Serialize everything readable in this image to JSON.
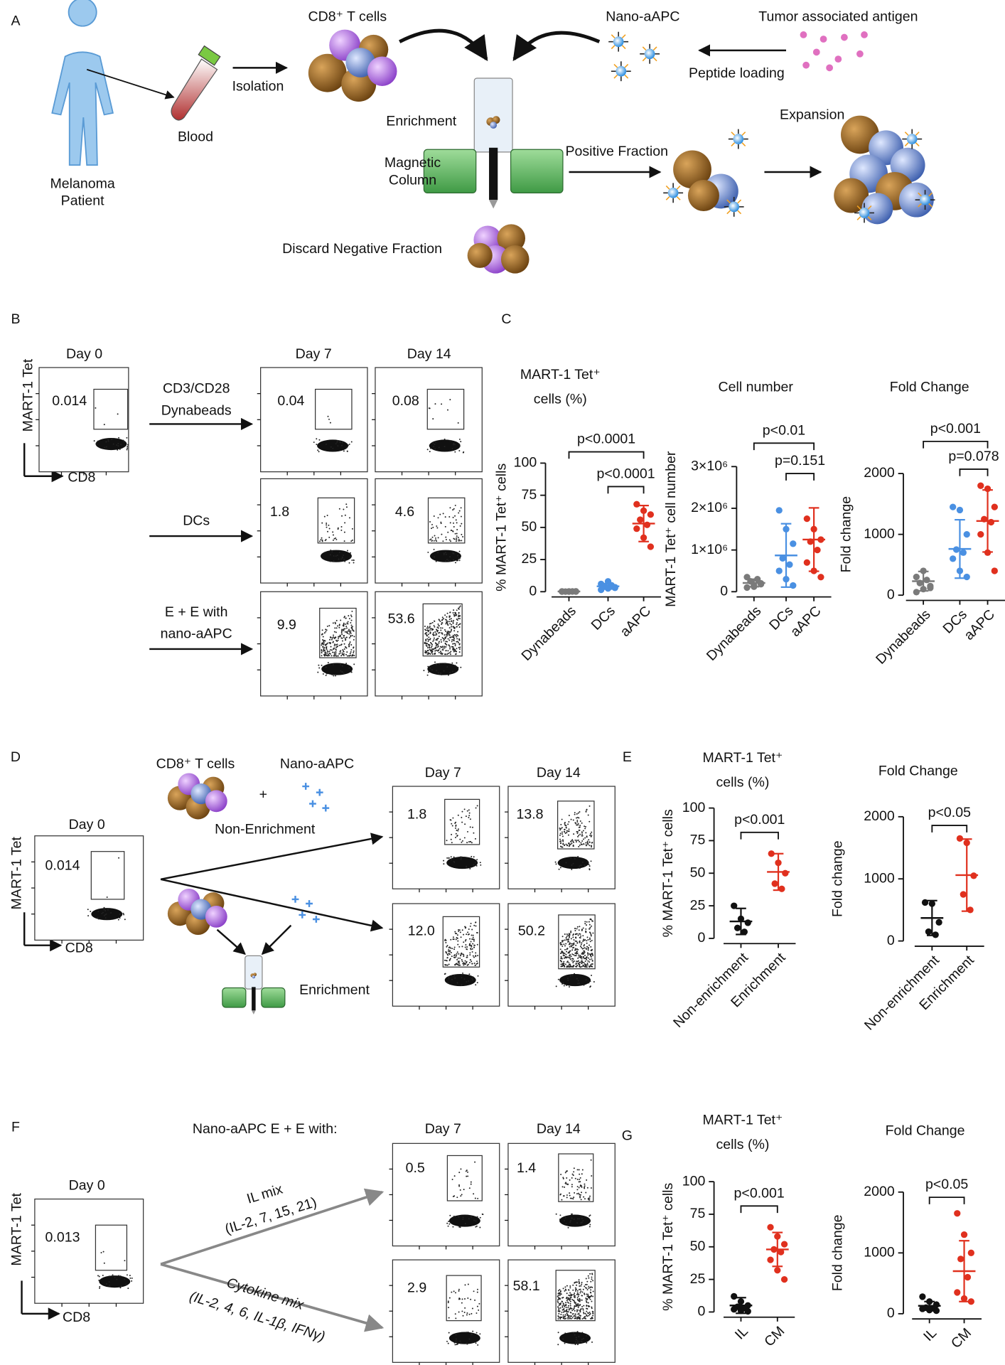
{
  "panel_letters": [
    "A",
    "B",
    "C",
    "D",
    "E",
    "F",
    "G"
  ],
  "schematic": {
    "patient": [
      "Melanoma",
      "Patient"
    ],
    "blood": "Blood",
    "isolation": "Isolation",
    "cd8": "CD8⁺ T cells",
    "nano_aapc": "Nano-aAPC",
    "antigen": "Tumor associated antigen",
    "peptide_loading": "Peptide loading",
    "enrichment": "Enrichment",
    "column": [
      "Magnetic",
      "Column"
    ],
    "positive": "Positive Fraction",
    "expansion": "Expansion",
    "discard": "Discard Negative Fraction"
  },
  "flow_B": {
    "y_axis": "MART-1 Tet",
    "x_axis": "CD8",
    "day0": "Day 0",
    "day0_gate": "0.014",
    "days": [
      "Day 7",
      "Day 14"
    ],
    "conditions": [
      {
        "label": [
          "CD3/CD28",
          "Dynabeads"
        ],
        "gates": [
          "0.04",
          "0.08"
        ]
      },
      {
        "label": [
          "DCs"
        ],
        "gates": [
          "1.8",
          "4.6"
        ]
      },
      {
        "label": [
          "E + E with",
          "nano-aAPC"
        ],
        "gates": [
          "9.9",
          "53.6"
        ]
      }
    ]
  },
  "flow_D": {
    "y_axis": "MART-1 Tet",
    "x_axis": "CD8",
    "day0": "Day 0",
    "day0_gate": "0.014",
    "days": [
      "Day 7",
      "Day 14"
    ],
    "cd8": "CD8⁺ T cells",
    "nano": "Nano-aAPC",
    "plus": "+",
    "conditions": [
      {
        "label": [
          "Non-Enrichment"
        ],
        "gates": [
          "1.8",
          "13.8"
        ]
      },
      {
        "label": [
          "Enrichment"
        ],
        "gates": [
          "12.0",
          "50.2"
        ]
      }
    ]
  },
  "flow_F": {
    "y_axis": "MART-1 Tet",
    "x_axis": "CD8",
    "day0": "Day 0",
    "day0_gate": "0.013",
    "days": [
      "Day 7",
      "Day 14"
    ],
    "heading": "Nano-aAPC E + E with:",
    "conditions": [
      {
        "label": [
          "IL mix",
          "(IL-2, 7, 15, 21)"
        ],
        "gates": [
          "0.5",
          "1.4"
        ]
      },
      {
        "label": [
          "Cytokine mix",
          "(IL-2, 4, 6, IL-1β, IFNγ)"
        ],
        "gates": [
          "2.9",
          "58.1"
        ]
      }
    ]
  },
  "chart_data": [
    {
      "type": "dotplot",
      "title": [
        "MART-1 Tet⁺",
        "cells (%)"
      ],
      "ylabel": "% MART-1 Tet⁺ cells",
      "categories": [
        "Dynabeads",
        "DCs",
        "aAPC"
      ],
      "groups": [
        {
          "color": "#7a7a7a",
          "points": [
            0.2,
            0.1,
            0.3,
            0.1,
            0.2,
            0.1,
            0.2,
            0.1
          ],
          "mean": 0.2,
          "sd": 0.1
        },
        {
          "color": "#4a90e2",
          "points": [
            1.5,
            2.5,
            3,
            4,
            5,
            6,
            8,
            3.5
          ],
          "mean": 4.2,
          "sd": 2.1
        },
        {
          "color": "#e0301e",
          "points": [
            68,
            63,
            60,
            56,
            52,
            49,
            42,
            35
          ],
          "mean": 53,
          "sd": 14
        }
      ],
      "ylim": [
        0,
        100
      ],
      "yticks": [
        0,
        25,
        50,
        75,
        100
      ],
      "annotations": [
        "p<0.0001",
        "p<0.0001"
      ]
    },
    {
      "type": "dotplot",
      "title": [
        "Cell number"
      ],
      "ylabel": "MART-1 Tet⁺ cell number",
      "categories": [
        "Dynabeads",
        "DCs",
        "aAPC"
      ],
      "groups": [
        {
          "color": "#7a7a7a",
          "points": [
            100000,
            150000,
            200000,
            250000,
            300000,
            350000,
            120000,
            180000
          ],
          "mean": 210000,
          "sd": 90000
        },
        {
          "color": "#4a90e2",
          "points": [
            1950000,
            1500000,
            1150000,
            800000,
            650000,
            500000,
            300000,
            150000
          ],
          "mean": 870000,
          "sd": 760000
        },
        {
          "color": "#e0301e",
          "points": [
            1750000,
            1500000,
            1250000,
            1200000,
            1000000,
            700000,
            500000,
            350000
          ],
          "mean": 1250000,
          "sd": 760000
        }
      ],
      "ylim": [
        0,
        3000000
      ],
      "yticks": [
        0,
        {
          "value": 1000000,
          "label": "1×10⁶"
        },
        {
          "value": 2000000,
          "label": "2×10⁶"
        },
        {
          "value": 3000000,
          "label": "3×10⁶"
        }
      ],
      "annotations": [
        "p<0.01",
        "p=0.151"
      ]
    },
    {
      "type": "dotplot",
      "title": [
        "Fold Change"
      ],
      "ylabel": "Fold change",
      "categories": [
        "Dynabeads",
        "DCs",
        "aAPC"
      ],
      "groups": [
        {
          "color": "#7a7a7a",
          "points": [
            50,
            100,
            150,
            200,
            250,
            300,
            400,
            120
          ],
          "mean": 230,
          "sd": 160
        },
        {
          "color": "#4a90e2",
          "points": [
            1450,
            1400,
            1000,
            750,
            700,
            600,
            400,
            300
          ],
          "mean": 760,
          "sd": 480
        },
        {
          "color": "#e0301e",
          "points": [
            1800,
            1750,
            1450,
            1250,
            1200,
            1000,
            700,
            400
          ],
          "mean": 1220,
          "sd": 510
        }
      ],
      "ylim": [
        0,
        2000
      ],
      "yticks": [
        0,
        1000,
        2000
      ],
      "annotations": [
        "p<0.001",
        "p=0.078"
      ]
    },
    {
      "type": "dotplot",
      "title": [
        "MART-1 Tet⁺",
        "cells (%)"
      ],
      "ylabel": "% MART-1 Tet⁺ cells",
      "categories": [
        "Non-enrichment",
        "Enrichment"
      ],
      "groups": [
        {
          "color": "#111111",
          "points": [
            25,
            15,
            12,
            8,
            5
          ],
          "mean": 13,
          "sd": 10
        },
        {
          "color": "#e0301e",
          "points": [
            65,
            58,
            50,
            42,
            38
          ],
          "mean": 51,
          "sd": 14
        }
      ],
      "ylim": [
        0,
        100
      ],
      "yticks": [
        0,
        25,
        50,
        75,
        100
      ],
      "annotations": [
        "p<0.001"
      ]
    },
    {
      "type": "dotplot",
      "title": [
        "Fold Change"
      ],
      "ylabel": "Fold change",
      "categories": [
        "Non-enrichment",
        "Enrichment"
      ],
      "groups": [
        {
          "color": "#111111",
          "points": [
            620,
            600,
            300,
            150,
            100
          ],
          "mean": 370,
          "sd": 280
        },
        {
          "color": "#e0301e",
          "points": [
            1650,
            1580,
            1050,
            750,
            500
          ],
          "mean": 1060,
          "sd": 580
        }
      ],
      "ylim": [
        0,
        2000
      ],
      "yticks": [
        0,
        1000,
        2000
      ],
      "annotations": [
        "p<0.05"
      ]
    },
    {
      "type": "dotplot",
      "title": [
        "MART-1 Tet⁺",
        "cells (%)"
      ],
      "ylabel": "% MART-1 Tet⁺ cells",
      "categories": [
        "IL",
        "CM"
      ],
      "groups": [
        {
          "color": "#111111",
          "points": [
            12,
            8,
            5,
            4,
            3,
            2,
            1,
            0.5
          ],
          "mean": 5,
          "sd": 6
        },
        {
          "color": "#e0301e",
          "points": [
            65,
            58,
            52,
            48,
            46,
            40,
            32,
            25
          ],
          "mean": 48,
          "sd": 13
        }
      ],
      "ylim": [
        0,
        100
      ],
      "yticks": [
        0,
        25,
        50,
        75,
        100
      ],
      "annotations": [
        "p<0.001"
      ]
    },
    {
      "type": "dotplot",
      "title": [
        "Fold Change"
      ],
      "ylabel": "Fold change",
      "categories": [
        "IL",
        "CM"
      ],
      "groups": [
        {
          "color": "#111111",
          "points": [
            280,
            200,
            150,
            100,
            90,
            80,
            60,
            50
          ],
          "mean": 130,
          "sd": 70
        },
        {
          "color": "#e0301e",
          "points": [
            1650,
            1300,
            1000,
            900,
            600,
            350,
            250,
            200
          ],
          "mean": 700,
          "sd": 500
        }
      ],
      "ylim": [
        0,
        2000
      ],
      "yticks": [
        0,
        1000,
        2000
      ],
      "annotations": [
        "p<0.05"
      ]
    }
  ]
}
